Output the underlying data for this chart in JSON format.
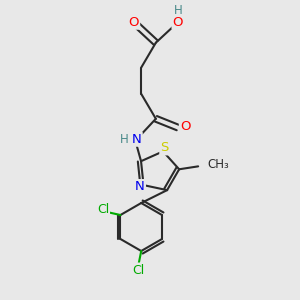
{
  "background_color": "#e8e8e8",
  "bond_color": "#2a2a2a",
  "bond_width": 1.5,
  "atom_colors": {
    "O": "#ff0000",
    "N": "#0000ee",
    "S": "#cccc00",
    "Cl": "#00aa00",
    "H": "#4a8a8a",
    "C": "#2a2a2a"
  },
  "font_size": 9,
  "fig_size": [
    3.0,
    3.0
  ],
  "dpi": 100
}
